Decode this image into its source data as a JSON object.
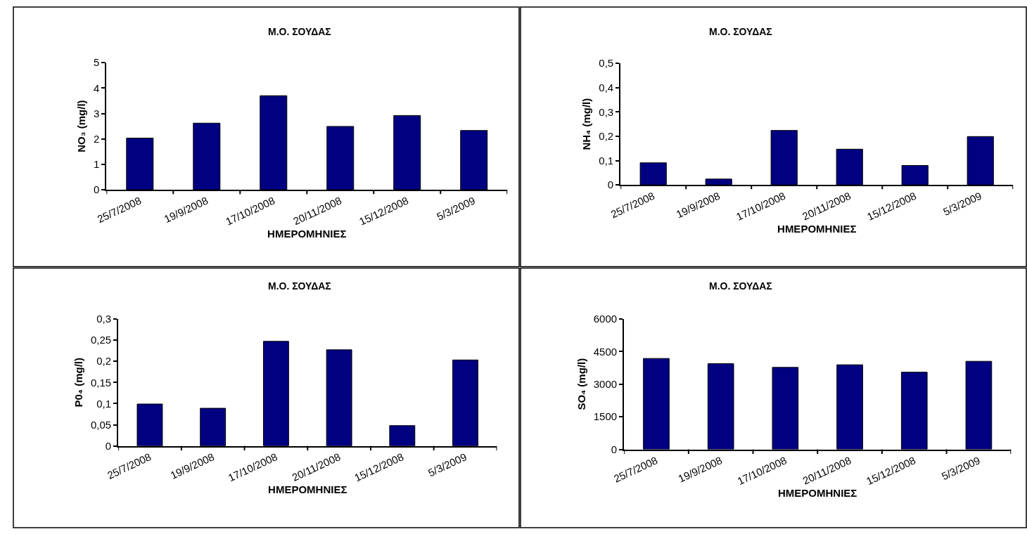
{
  "chart_data": [
    {
      "type": "bar",
      "title": "Μ.Ο. ΣΟΥΔΑΣ",
      "xlabel": "ΗΜΕΡΟΜΗΝΙΕΣ",
      "ylabel": "NO₃ (mg/l)",
      "categories": [
        "25/7/2008",
        "19/9/2008",
        "17/10/2008",
        "20/11/2008",
        "15/12/2008",
        "5/3/2009"
      ],
      "values": [
        2.03,
        2.62,
        3.7,
        2.49,
        2.92,
        2.33
      ],
      "color": "#000080",
      "ylim": [
        0,
        5
      ],
      "yticks": [
        0,
        1,
        2,
        3,
        4,
        5
      ],
      "grid": false
    },
    {
      "type": "bar",
      "title": "Μ.Ο. ΣΟΥΔΑΣ",
      "xlabel": "ΗΜΕΡΟΜΗΝΙΕΣ",
      "ylabel": "NH₄ (mg/l)",
      "categories": [
        "25/7/2008",
        "19/9/2008",
        "17/10/2008",
        "20/11/2008",
        "15/12/2008",
        "5/3/2009"
      ],
      "values": [
        0.091,
        0.024,
        0.224,
        0.147,
        0.08,
        0.199
      ],
      "color": "#000080",
      "ylim": [
        0,
        0.5
      ],
      "yticks": [
        0,
        {
          "value": 0.1,
          "label": "0,1"
        },
        {
          "value": 0.2,
          "label": "0,2"
        },
        {
          "value": 0.3,
          "label": "0,3"
        },
        {
          "value": 0.4,
          "label": "0,4"
        },
        {
          "value": 0.5,
          "label": "0,5"
        }
      ],
      "grid": false
    },
    {
      "type": "bar",
      "title": "Μ.Ο. ΣΟΥΔΑΣ",
      "xlabel": "ΗΜΕΡΟΜΗΝΙΕΣ",
      "ylabel": "P0₄ (mg/l)",
      "categories": [
        "25/7/2008",
        "19/9/2008",
        "17/10/2008",
        "20/11/2008",
        "15/12/2008",
        "5/3/2009"
      ],
      "values": [
        0.099,
        0.089,
        0.247,
        0.227,
        0.048,
        0.203
      ],
      "color": "#000080",
      "ylim": [
        0,
        0.3
      ],
      "yticks": [
        0,
        {
          "value": 0.05,
          "label": "0,05"
        },
        {
          "value": 0.1,
          "label": "0,1"
        },
        {
          "value": 0.15,
          "label": "0,15"
        },
        {
          "value": 0.2,
          "label": "0,2"
        },
        {
          "value": 0.25,
          "label": "0,25"
        },
        {
          "value": 0.3,
          "label": "0,3"
        }
      ],
      "grid": false
    },
    {
      "type": "bar",
      "title": "Μ.Ο. ΣΟΥΔΑΣ",
      "xlabel": "ΗΜΕΡΟΜΗΝΙΕΣ",
      "ylabel": "SO₄ (mg/l)",
      "categories": [
        "25/7/2008",
        "19/9/2008",
        "17/10/2008",
        "20/11/2008",
        "15/12/2008",
        "5/3/2009"
      ],
      "values": [
        4180,
        3940,
        3770,
        3890,
        3550,
        4050
      ],
      "color": "#000080",
      "ylim": [
        0,
        6000
      ],
      "yticks": [
        0,
        1500,
        3000,
        4500,
        6000
      ],
      "grid": false
    }
  ]
}
